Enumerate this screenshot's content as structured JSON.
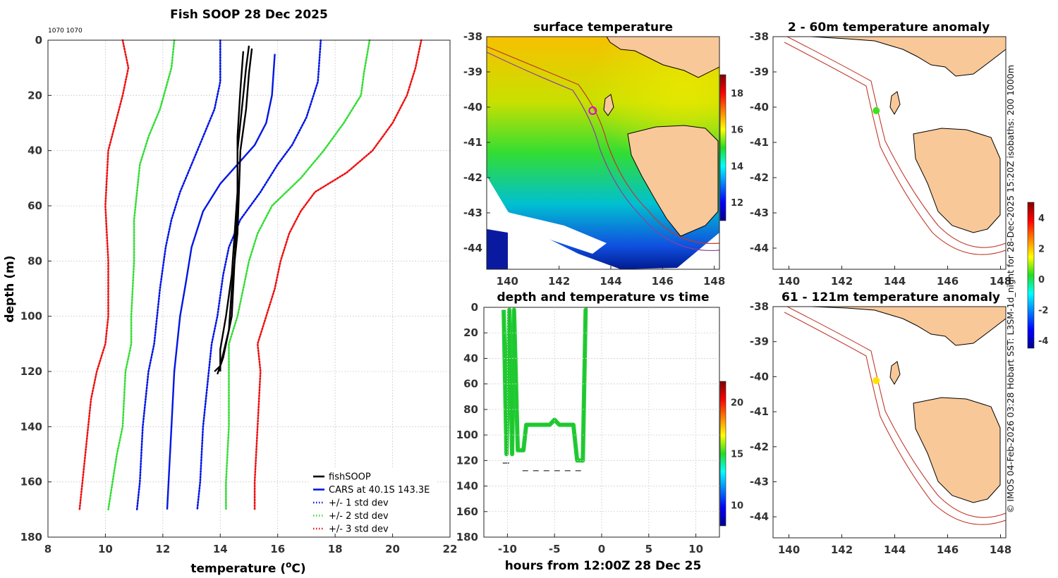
{
  "chart_data": [
    {
      "type": "line",
      "id": "profile",
      "title": "Fish SOOP 28 Dec 2025",
      "subtitle": "1070 1070",
      "xlabel": "temperature (",
      "xlabel_sup": "o",
      "xlabel_tail": "C)",
      "ylabel": "depth (m)",
      "xlim": [
        8,
        22
      ],
      "ylim": [
        180,
        0
      ],
      "xticks": [
        "8",
        "10",
        "12",
        "14",
        "16",
        "18",
        "20",
        "22"
      ],
      "yticks": [
        "0",
        "20",
        "40",
        "60",
        "80",
        "100",
        "120",
        "140",
        "160",
        "180"
      ],
      "legend": [
        {
          "label": "fishSOOP",
          "color": "#000000",
          "style": "solid"
        },
        {
          "label": "CARS at 40.1S 143.3E",
          "color": "#0015e6",
          "style": "solid"
        },
        {
          "label": "+/- 1 std dev",
          "color": "#0015e6",
          "style": "dotted"
        },
        {
          "label": "+/- 2 std dev",
          "color": "#33dd33",
          "style": "dotted"
        },
        {
          "label": "+/- 3 std dev",
          "color": "#ee1111",
          "style": "dotted"
        }
      ],
      "series": [
        {
          "name": "CARS mean",
          "color": "#0015e6",
          "style": "solid",
          "points": [
            [
              15.9,
              5
            ],
            [
              15.8,
              20
            ],
            [
              15.6,
              30
            ],
            [
              15.2,
              38
            ],
            [
              14.6,
              45
            ],
            [
              14.0,
              52
            ],
            [
              13.4,
              62
            ],
            [
              13.0,
              75
            ],
            [
              12.8,
              88
            ],
            [
              12.6,
              100
            ],
            [
              12.5,
              110
            ],
            [
              12.4,
              120
            ],
            [
              12.3,
              140
            ],
            [
              12.2,
              160
            ],
            [
              12.15,
              170
            ]
          ]
        },
        {
          "name": "-1 std",
          "color": "#0015e6",
          "style": "dotted",
          "points": [
            [
              14.0,
              0
            ],
            [
              14.0,
              15
            ],
            [
              13.8,
              25
            ],
            [
              13.4,
              35
            ],
            [
              13.0,
              45
            ],
            [
              12.6,
              55
            ],
            [
              12.3,
              65
            ],
            [
              12.1,
              75
            ],
            [
              11.9,
              90
            ],
            [
              11.8,
              100
            ],
            [
              11.7,
              110
            ],
            [
              11.5,
              120
            ],
            [
              11.3,
              140
            ],
            [
              11.2,
              160
            ],
            [
              11.1,
              170
            ]
          ]
        },
        {
          "name": "+1 std",
          "color": "#0015e6",
          "style": "dotted",
          "points": [
            [
              17.5,
              0
            ],
            [
              17.4,
              15
            ],
            [
              17.0,
              28
            ],
            [
              16.5,
              38
            ],
            [
              16.0,
              45
            ],
            [
              15.4,
              55
            ],
            [
              14.7,
              65
            ],
            [
              14.3,
              75
            ],
            [
              14.1,
              85
            ],
            [
              13.9,
              100
            ],
            [
              13.7,
              110
            ],
            [
              13.6,
              120
            ],
            [
              13.4,
              140
            ],
            [
              13.3,
              160
            ],
            [
              13.2,
              170
            ]
          ]
        },
        {
          "name": "-2 std",
          "color": "#33dd33",
          "style": "dotted",
          "points": [
            [
              12.4,
              0
            ],
            [
              12.3,
              10
            ],
            [
              11.9,
              25
            ],
            [
              11.5,
              35
            ],
            [
              11.2,
              45
            ],
            [
              11.1,
              55
            ],
            [
              11.0,
              65
            ],
            [
              11.0,
              80
            ],
            [
              10.9,
              100
            ],
            [
              10.9,
              110
            ],
            [
              10.7,
              120
            ],
            [
              10.6,
              140
            ],
            [
              10.4,
              150
            ],
            [
              10.1,
              170
            ]
          ]
        },
        {
          "name": "+2 std",
          "color": "#33dd33",
          "style": "dotted",
          "points": [
            [
              19.2,
              0
            ],
            [
              19.0,
              12
            ],
            [
              18.9,
              20
            ],
            [
              18.3,
              30
            ],
            [
              17.6,
              40
            ],
            [
              16.8,
              50
            ],
            [
              15.8,
              60
            ],
            [
              15.3,
              70
            ],
            [
              15.0,
              80
            ],
            [
              14.8,
              90
            ],
            [
              14.6,
              100
            ],
            [
              14.3,
              110
            ],
            [
              14.3,
              120
            ],
            [
              14.3,
              140
            ],
            [
              14.2,
              160
            ],
            [
              14.2,
              170
            ]
          ]
        },
        {
          "name": "-3 std",
          "color": "#ee1111",
          "style": "dotted",
          "points": [
            [
              10.6,
              0
            ],
            [
              10.8,
              10
            ],
            [
              10.6,
              20
            ],
            [
              10.1,
              40
            ],
            [
              10.0,
              60
            ],
            [
              10.1,
              80
            ],
            [
              10.1,
              100
            ],
            [
              10.0,
              110
            ],
            [
              9.7,
              120
            ],
            [
              9.5,
              130
            ],
            [
              9.4,
              140
            ],
            [
              9.2,
              160
            ],
            [
              9.1,
              170
            ]
          ]
        },
        {
          "name": "+3 std",
          "color": "#ee1111",
          "style": "dotted",
          "points": [
            [
              21.0,
              0
            ],
            [
              20.8,
              10
            ],
            [
              20.5,
              20
            ],
            [
              20.0,
              30
            ],
            [
              19.3,
              40
            ],
            [
              18.4,
              48
            ],
            [
              17.3,
              55
            ],
            [
              16.8,
              62
            ],
            [
              16.4,
              70
            ],
            [
              16.1,
              80
            ],
            [
              15.9,
              90
            ],
            [
              15.6,
              100
            ],
            [
              15.3,
              110
            ],
            [
              15.4,
              120
            ],
            [
              15.3,
              140
            ],
            [
              15.2,
              160
            ],
            [
              15.2,
              170
            ]
          ]
        },
        {
          "name": "fishSOOP a",
          "color": "#000000",
          "style": "solid",
          "points": [
            [
              15.0,
              2
            ],
            [
              14.9,
              10
            ],
            [
              14.8,
              20
            ],
            [
              14.6,
              40
            ],
            [
              14.6,
              60
            ],
            [
              14.5,
              80
            ],
            [
              14.4,
              100
            ],
            [
              14.1,
              115
            ],
            [
              13.9,
              121
            ]
          ]
        },
        {
          "name": "fishSOOP b",
          "color": "#000000",
          "style": "solid",
          "points": [
            [
              15.1,
              3
            ],
            [
              15.0,
              12
            ],
            [
              14.9,
              25
            ],
            [
              14.7,
              40
            ],
            [
              14.6,
              70
            ],
            [
              14.4,
              90
            ],
            [
              14.3,
              105
            ],
            [
              14.0,
              118
            ],
            [
              13.8,
              120
            ]
          ]
        },
        {
          "name": "fishSOOP c",
          "color": "#000000",
          "style": "solid",
          "points": [
            [
              14.8,
              4
            ],
            [
              14.7,
              18
            ],
            [
              14.6,
              35
            ],
            [
              14.6,
              55
            ],
            [
              14.4,
              85
            ],
            [
              14.2,
              100
            ],
            [
              14.0,
              112
            ],
            [
              14.0,
              120
            ]
          ]
        }
      ]
    },
    {
      "type": "heatmap",
      "id": "sst_map",
      "title": "surface temperature",
      "xticks": [
        "140",
        "142",
        "144",
        "146",
        "148"
      ],
      "yticks": [
        "-38",
        "-39",
        "-40",
        "-41",
        "-42",
        "-43",
        "-44"
      ],
      "xlim": [
        139.2,
        148.2
      ],
      "ylim": [
        -44.6,
        -38.0
      ],
      "colorbar": {
        "min": 11,
        "max": 19,
        "ticks": [
          "12",
          "14",
          "16",
          "18"
        ]
      },
      "station": {
        "lon": 143.3,
        "lat": -40.1
      }
    },
    {
      "type": "scatter",
      "id": "depth_time",
      "title": "depth and temperature vs time",
      "xlabel": "hours from 12:00Z 28 Dec 25",
      "xlim": [
        -12.5,
        12.5
      ],
      "ylim": [
        180,
        0
      ],
      "xticks": [
        "-10",
        "-5",
        "0",
        "5",
        "10"
      ],
      "yticks": [
        "0",
        "20",
        "40",
        "60",
        "80",
        "100",
        "120",
        "140",
        "160",
        "180"
      ],
      "colorbar": {
        "min": 8,
        "max": 22,
        "ticks": [
          "10",
          "15",
          "20"
        ]
      },
      "track_hours": [
        -10.4,
        -10.1,
        -9.8,
        -9.5,
        -9.3,
        -8.9,
        -8.6,
        -8.3,
        -8.0,
        -7.5,
        -7.0,
        -6.5,
        -6.0,
        -5.5,
        -5.0,
        -4.5,
        -4.0,
        -3.5,
        -3.0,
        -2.6,
        -2.3,
        -2.0,
        -1.7,
        -1.5
      ],
      "track_depths": [
        2,
        115,
        2,
        115,
        2,
        112,
        112,
        112,
        92,
        92,
        92,
        92,
        92,
        92,
        88,
        92,
        92,
        92,
        92,
        120,
        120,
        120,
        2,
        2
      ]
    },
    {
      "type": "scatter",
      "id": "anom_upper",
      "title": "2 - 60m temperature anomaly",
      "xticks": [
        "140",
        "142",
        "144",
        "146",
        "148"
      ],
      "yticks": [
        "-38",
        "-39",
        "-40",
        "-41",
        "-42",
        "-43",
        "-44"
      ],
      "station": {
        "lon": 143.3,
        "lat": -40.1,
        "anomaly": 0.4
      }
    },
    {
      "type": "scatter",
      "id": "anom_lower",
      "title": "61 - 121m temperature anomaly",
      "xticks": [
        "140",
        "142",
        "144",
        "146",
        "148"
      ],
      "yticks": [
        "-38",
        "-39",
        "-40",
        "-41",
        "-42",
        "-43",
        "-44"
      ],
      "station": {
        "lon": 143.3,
        "lat": -40.1,
        "anomaly": 1.7
      },
      "colorbar": {
        "min": -4.5,
        "max": 5,
        "ticks": [
          "4",
          "2",
          "0",
          "-2",
          "-4"
        ]
      }
    }
  ],
  "credit": "© IMOS 04-Feb-2026 03:28 Hobart SST: L3SM-1d_night for 28-Dec-2025 15:20Z isobaths: 200  1000m",
  "colors": {
    "land": "#f9c898",
    "coast": "#000000",
    "isobath": "#c0392b",
    "station_ring": "#e000e0"
  }
}
